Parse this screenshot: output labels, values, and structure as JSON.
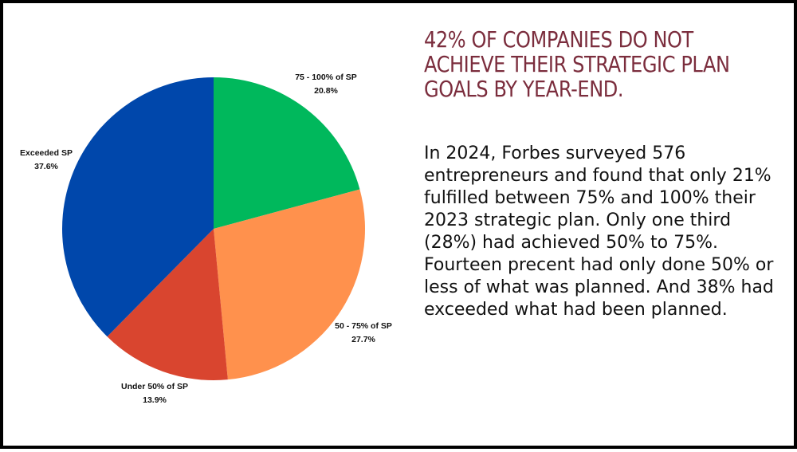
{
  "headline": "42% OF COMPANIES DO NOT ACHIEVE THEIR STRATEGIC PLAN GOALS BY YEAR-END.",
  "body": "In 2024, Forbes surveyed 576 entrepreneurs and found that only 21% fulfilled between 75% and 100% their 2023 strategic plan. Only one third (28%) had achieved 50% to 75%. Fourteen precent had only done 50% or less of what was planned. And 38% had exceeded what had been planned.",
  "colors": {
    "headline": "#7b2d3d",
    "border": "#000000"
  },
  "chart_data": {
    "type": "pie",
    "start_angle_deg": 0,
    "direction": "clockwise",
    "slices": [
      {
        "label": "75 - 100% of SP",
        "value": 20.8,
        "display": "20.8%",
        "color": "#00b85c"
      },
      {
        "label": "50 - 75% of SP",
        "value": 27.7,
        "display": "27.7%",
        "color": "#ff914d"
      },
      {
        "label": "Under 50% of SP",
        "value": 13.9,
        "display": "13.9%",
        "color": "#d9452f"
      },
      {
        "label": "Exceeded SP",
        "value": 37.6,
        "display": "37.6%",
        "color": "#0047ab"
      }
    ]
  }
}
